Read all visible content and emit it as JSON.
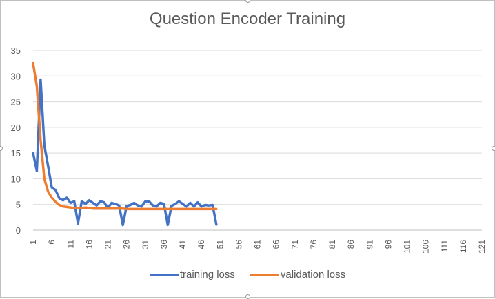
{
  "chart_data": {
    "type": "line",
    "title": "Question Encoder Training",
    "xlabel": "",
    "ylabel": "",
    "x_categories_range": [
      1,
      121
    ],
    "x_tick_labels": [
      "1",
      "6",
      "11",
      "16",
      "21",
      "26",
      "31",
      "36",
      "41",
      "46",
      "51",
      "56",
      "61",
      "66",
      "71",
      "76",
      "81",
      "86",
      "91",
      "96",
      "101",
      "106",
      "111",
      "116",
      "121"
    ],
    "ylim": [
      0,
      35
    ],
    "y_tick_labels": [
      "0",
      "5",
      "10",
      "15",
      "20",
      "25",
      "30",
      "35"
    ],
    "grid": "horizontal",
    "legend_position": "bottom",
    "series": [
      {
        "name": "training loss",
        "color": "#4472c4",
        "x": [
          1,
          2,
          3,
          4,
          5,
          6,
          7,
          8,
          9,
          10,
          11,
          12,
          13,
          14,
          15,
          16,
          17,
          18,
          19,
          20,
          21,
          22,
          23,
          24,
          25,
          26,
          27,
          28,
          29,
          30,
          31,
          32,
          33,
          34,
          35,
          36,
          37,
          38,
          39,
          40,
          41,
          42,
          43,
          44,
          45,
          46,
          47,
          48,
          49,
          50
        ],
        "values": [
          15,
          11.5,
          29.3,
          16.5,
          12.5,
          8.3,
          7.8,
          6.2,
          5.8,
          6.3,
          5.3,
          5.6,
          1.3,
          5.6,
          5.1,
          5.8,
          5.3,
          4.8,
          5.6,
          5.4,
          4.3,
          5.3,
          5.1,
          4.8,
          1,
          4.7,
          4.9,
          5.3,
          4.8,
          4.6,
          5.6,
          5.6,
          4.8,
          4.6,
          5.3,
          5.1,
          1,
          4.7,
          5.1,
          5.6,
          5.1,
          4.6,
          5.3,
          4.6,
          5.4,
          4.6,
          4.9,
          4.8,
          4.9,
          1.1
        ]
      },
      {
        "name": "validation loss",
        "color": "#ed7d31",
        "x": [
          1,
          2,
          3,
          4,
          5,
          6,
          7,
          8,
          9,
          10,
          11,
          12,
          13,
          14,
          15,
          16,
          17,
          18,
          19,
          20,
          21,
          22,
          23,
          24,
          25,
          26,
          27,
          28,
          29,
          30,
          31,
          32,
          33,
          34,
          35,
          36,
          37,
          38,
          39,
          40,
          41,
          42,
          43,
          44,
          45,
          46,
          47,
          48,
          49,
          50
        ],
        "values": [
          32.5,
          28,
          17.5,
          10,
          7.5,
          6.3,
          5.5,
          4.9,
          4.6,
          4.5,
          4.4,
          4.3,
          4.3,
          4.3,
          4.4,
          4.3,
          4.2,
          4.2,
          4.2,
          4.2,
          4.2,
          4.2,
          4.2,
          4.2,
          4.2,
          4.1,
          4.1,
          4.1,
          4.1,
          4.1,
          4.1,
          4.1,
          4.1,
          4.1,
          4.1,
          4.1,
          4.1,
          4.1,
          4.1,
          4.1,
          4.1,
          4.1,
          4.1,
          4.1,
          4.1,
          4.1,
          4.1,
          4.1,
          4.1,
          4.1
        ]
      }
    ]
  }
}
